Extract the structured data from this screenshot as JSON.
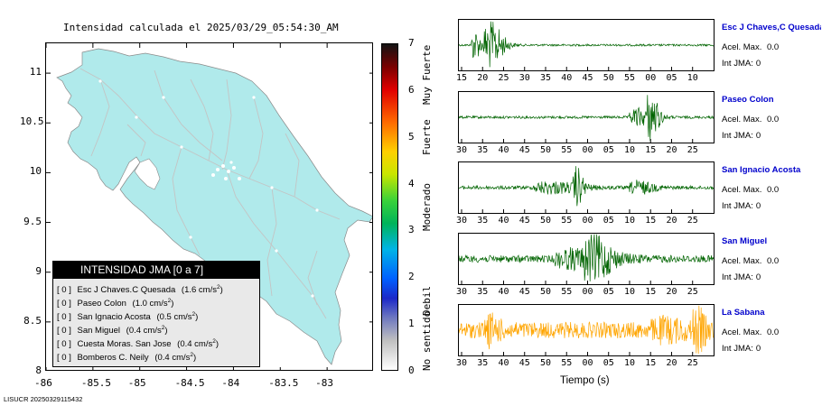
{
  "title": "Intensidad calculada el 2025/03/29_05:54:30_AM",
  "footer": "LISUCR 20250329115432",
  "colors": {
    "land": "#b0eaeb",
    "roads": "#c8c8c8",
    "ocean": "#ffffff",
    "trace_green": "#006400",
    "trace_orange": "#ffa500",
    "station_name": "#0000cc"
  },
  "map": {
    "x_ticks": [
      "-86",
      "-85.5",
      "-85",
      "-84.5",
      "-84",
      "-83.5",
      "-83"
    ],
    "y_ticks": [
      "11",
      "10.5",
      "10",
      "9.5",
      "9",
      "8.5",
      "8"
    ],
    "x_values": [
      -86,
      -85.5,
      -85,
      -84.5,
      -84,
      -83.5,
      -83
    ],
    "y_values": [
      11,
      10.5,
      10,
      9.5,
      9,
      8.5,
      8
    ],
    "xlim": [
      -86,
      -82.5
    ],
    "ylim": [
      8,
      11.3
    ]
  },
  "legend": {
    "title": "INTENSIDAD JMA [0 a 7]",
    "entries": [
      {
        "level": "[ 0 ]",
        "name": "Esc J Chaves.C Quesada",
        "value": "(1.6 cm/s",
        "exp": "2",
        "close": ")"
      },
      {
        "level": "[ 0 ]",
        "name": "Paseo Colon",
        "value": "(1.0 cm/s",
        "exp": "2",
        "close": ")"
      },
      {
        "level": "[ 0 ]",
        "name": "San Ignacio Acosta",
        "value": "(0.5 cm/s",
        "exp": "2",
        "close": ")"
      },
      {
        "level": "[ 0 ]",
        "name": "San Miguel",
        "value": "(0.4 cm/s",
        "exp": "2",
        "close": ")"
      },
      {
        "level": "[ 0 ]",
        "name": "Cuesta Moras. San Jose",
        "value": "(0.4 cm/s",
        "exp": "2",
        "close": ")"
      },
      {
        "level": "[ 0 ]",
        "name": "Bomberos C. Neily",
        "value": "(0.4 cm/s",
        "exp": "2",
        "close": ")"
      }
    ]
  },
  "colorbar": {
    "labels": [
      "7",
      "6",
      "5",
      "4",
      "3",
      "2",
      "1",
      "0"
    ],
    "values": [
      7,
      6,
      5,
      4,
      3,
      2,
      1,
      0
    ],
    "range": [
      0,
      7
    ],
    "categories": [
      "Muy Fuerte",
      "Fuerte",
      "Moderado",
      "Debil",
      "No sentido"
    ],
    "category_centers": [
      6.5,
      5,
      3.5,
      1.5,
      0.4
    ]
  },
  "chart_data": [
    {
      "type": "map",
      "title": "Intensidad calculada el 2025/03/29_05:54:30_AM",
      "xlim": [
        -86,
        -82.5
      ],
      "ylim": [
        8,
        11.3
      ],
      "colorbar_range": [
        0,
        7
      ]
    },
    {
      "type": "line",
      "station": "Esc J Chaves,C Quesada",
      "acel_max": "0.0",
      "int_jma": "0",
      "x_ticks": [
        "15",
        "20",
        "25",
        "30",
        "35",
        "40",
        "45",
        "50",
        "55",
        "00",
        "05",
        "10"
      ],
      "color": "#006400"
    },
    {
      "type": "line",
      "station": "Paseo Colon",
      "acel_max": "0.0",
      "int_jma": "0",
      "x_ticks": [
        "30",
        "35",
        "40",
        "45",
        "50",
        "55",
        "00",
        "05",
        "10",
        "15",
        "20",
        "25"
      ],
      "color": "#006400"
    },
    {
      "type": "line",
      "station": "San Ignacio Acosta",
      "acel_max": "0.0",
      "int_jma": "0",
      "x_ticks": [
        "30",
        "35",
        "40",
        "45",
        "50",
        "55",
        "00",
        "05",
        "10",
        "15",
        "20",
        "25"
      ],
      "color": "#006400"
    },
    {
      "type": "line",
      "station": "San Miguel",
      "acel_max": "0.0",
      "int_jma": "0",
      "x_ticks": [
        "30",
        "35",
        "40",
        "45",
        "50",
        "55",
        "00",
        "05",
        "10",
        "15",
        "20",
        "25"
      ],
      "color": "#006400"
    },
    {
      "type": "line",
      "station": "La Sabana",
      "acel_max": "0.0",
      "int_jma": "0",
      "x_ticks": [
        "30",
        "35",
        "40",
        "45",
        "50",
        "55",
        "00",
        "05",
        "10",
        "15",
        "20",
        "25"
      ],
      "color": "#ffa500"
    }
  ],
  "traces": {
    "xlabel": "Tiempo (s)",
    "acel_label": "Acel. Max.",
    "int_label": "Int JMA:",
    "stations": [
      {
        "name": "Esc J Chaves,C Quesada",
        "acel": "0.0",
        "int": "0",
        "ticks": [
          "15",
          "20",
          "25",
          "30",
          "35",
          "40",
          "45",
          "50",
          "55",
          "00",
          "05",
          "10"
        ],
        "color": "#006400"
      },
      {
        "name": "Paseo Colon",
        "acel": "0.0",
        "int": "0",
        "ticks": [
          "30",
          "35",
          "40",
          "45",
          "50",
          "55",
          "00",
          "05",
          "10",
          "15",
          "20",
          "25"
        ],
        "color": "#006400"
      },
      {
        "name": "San Ignacio Acosta",
        "acel": "0.0",
        "int": "0",
        "ticks": [
          "30",
          "35",
          "40",
          "45",
          "50",
          "55",
          "00",
          "05",
          "10",
          "15",
          "20",
          "25"
        ],
        "color": "#006400"
      },
      {
        "name": "San Miguel",
        "acel": "0.0",
        "int": "0",
        "ticks": [
          "30",
          "35",
          "40",
          "45",
          "50",
          "55",
          "00",
          "05",
          "10",
          "15",
          "20",
          "25"
        ],
        "color": "#006400"
      },
      {
        "name": "La Sabana",
        "acel": "0.0",
        "int": "0",
        "ticks": [
          "30",
          "35",
          "40",
          "45",
          "50",
          "55",
          "00",
          "05",
          "10",
          "15",
          "20",
          "25"
        ],
        "color": "#ffa500"
      }
    ]
  }
}
